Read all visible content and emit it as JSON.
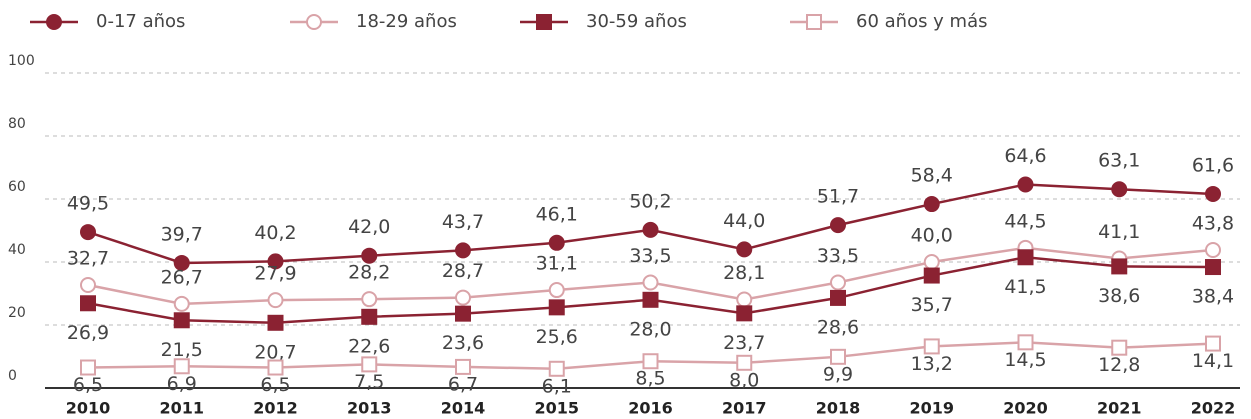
{
  "chart_data": {
    "type": "line",
    "categories": [
      "2010",
      "2011",
      "2012",
      "2013",
      "2014",
      "2015",
      "2016",
      "2017",
      "2018",
      "2019",
      "2020",
      "2021",
      "2022"
    ],
    "ylim": [
      0,
      100
    ],
    "yticks": [
      0,
      20,
      40,
      60,
      80,
      100
    ],
    "grid": true,
    "legend": "top",
    "series": [
      {
        "name": "0-17 años",
        "color": "#8b2232",
        "marker": "circle",
        "filled": true,
        "values": [
          49.5,
          39.7,
          40.2,
          42.0,
          43.7,
          46.1,
          50.2,
          44.0,
          51.7,
          58.4,
          64.6,
          63.1,
          61.6
        ],
        "value_labels": [
          "49,5",
          "39,7",
          "40,2",
          "42,0",
          "43,7",
          "46,1",
          "50,2",
          "44,0",
          "51,7",
          "58,4",
          "64,6",
          "63,1",
          "61,6"
        ]
      },
      {
        "name": "18-29 años",
        "color": "#d9a3a8",
        "marker": "circle",
        "filled": false,
        "values": [
          32.7,
          26.7,
          27.9,
          28.2,
          28.7,
          31.1,
          33.5,
          28.1,
          33.5,
          40.0,
          44.5,
          41.1,
          43.8
        ],
        "value_labels": [
          "32,7",
          "26,7",
          "27,9",
          "28,2",
          "28,7",
          "31,1",
          "33,5",
          "28,1",
          "33,5",
          "40,0",
          "44,5",
          "41,1",
          "43,8"
        ]
      },
      {
        "name": "30-59 años",
        "color": "#8b2232",
        "marker": "square",
        "filled": true,
        "values": [
          26.9,
          21.5,
          20.7,
          22.6,
          23.6,
          25.6,
          28.0,
          23.7,
          28.6,
          35.7,
          41.5,
          38.6,
          38.4
        ],
        "value_labels": [
          "26,9",
          "21,5",
          "20,7",
          "22,6",
          "23,6",
          "25,6",
          "28,0",
          "23,7",
          "28,6",
          "35,7",
          "41,5",
          "38,6",
          "38,4"
        ]
      },
      {
        "name": "60 años y más",
        "color": "#d9a3a8",
        "marker": "square",
        "filled": false,
        "values": [
          6.5,
          6.9,
          6.5,
          7.5,
          6.7,
          6.1,
          8.5,
          8.0,
          9.9,
          13.2,
          14.5,
          12.8,
          14.1
        ],
        "value_labels": [
          "6,5",
          "6,9",
          "6,5",
          "7,5",
          "6,7",
          "6,1",
          "8,5",
          "8,0",
          "9,9",
          "13,2",
          "14,5",
          "12,8",
          "14,1"
        ]
      }
    ]
  }
}
